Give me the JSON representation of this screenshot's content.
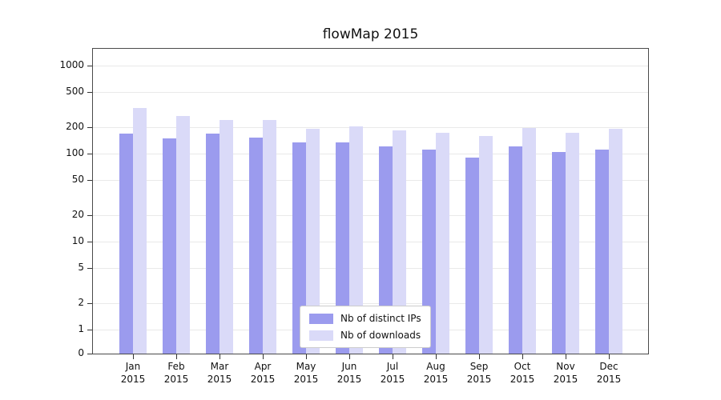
{
  "title": "flowMap 2015",
  "colors": {
    "axis": "#4a4a4a",
    "grid": "#e9e9e9",
    "legend_border": "#cccccc",
    "background": "#ffffff"
  },
  "chart_data": {
    "type": "bar",
    "title": "flowMap 2015",
    "xlabel": "",
    "ylabel": "",
    "yscale": "symlog",
    "grid": true,
    "legend_position": "lower center inside plot",
    "yticks": [
      0,
      1,
      2,
      5,
      10,
      20,
      50,
      100,
      200,
      500,
      1000
    ],
    "ylim": [
      0,
      1500
    ],
    "categories": [
      "Jan",
      "Feb",
      "Mar",
      "Apr",
      "May",
      "Jun",
      "Jul",
      "Aug",
      "Sep",
      "Oct",
      "Nov",
      "Dec"
    ],
    "x_year_line": "2015",
    "series": [
      {
        "name": "Nb of distinct IPs",
        "color": "#9b9bee",
        "values": [
          170,
          150,
          170,
          152,
          135,
          135,
          120,
          112,
          90,
          122,
          105,
          112
        ]
      },
      {
        "name": "Nb of downloads",
        "color": "#dadaf8",
        "values": [
          330,
          265,
          240,
          240,
          192,
          205,
          185,
          172,
          160,
          195,
          172,
          190
        ]
      }
    ]
  }
}
